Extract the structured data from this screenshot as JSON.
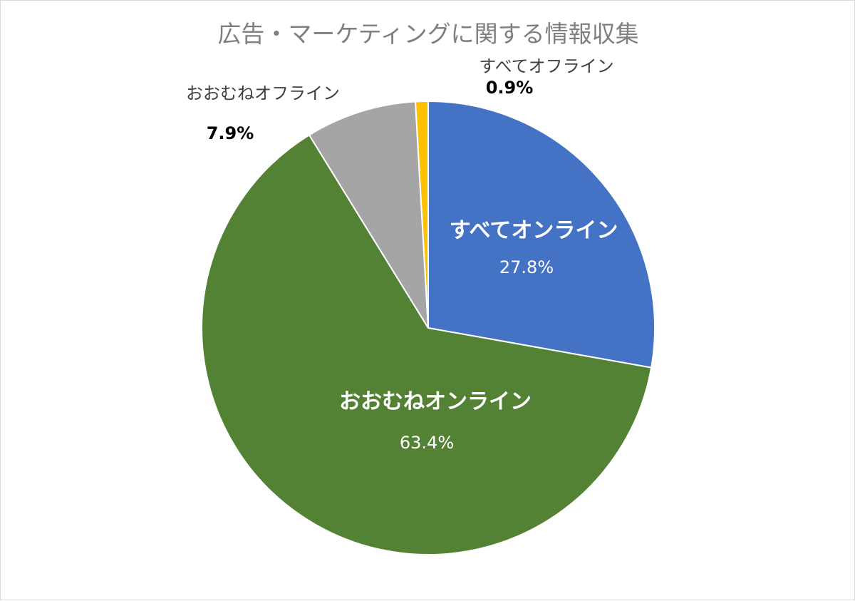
{
  "chart_data": {
    "type": "pie",
    "title": "広告・マーケティングに関する情報収集",
    "start_angle_deg": 0,
    "direction": "clockwise",
    "slices": [
      {
        "label": "すべてオンライン",
        "value": 27.8,
        "value_label": "27.8%",
        "color": "#4472C4",
        "label_position": "inside"
      },
      {
        "label": "おおむねオンライン",
        "value": 63.4,
        "value_label": "63.4%",
        "color": "#548235",
        "label_position": "inside"
      },
      {
        "label": "おおむねオフライン",
        "value": 7.9,
        "value_label": "7.9%",
        "color": "#A5A5A5",
        "label_position": "outside"
      },
      {
        "label": "すべてオフライン",
        "value": 0.9,
        "value_label": "0.9%",
        "color": "#FFC000",
        "label_position": "outside"
      }
    ]
  }
}
